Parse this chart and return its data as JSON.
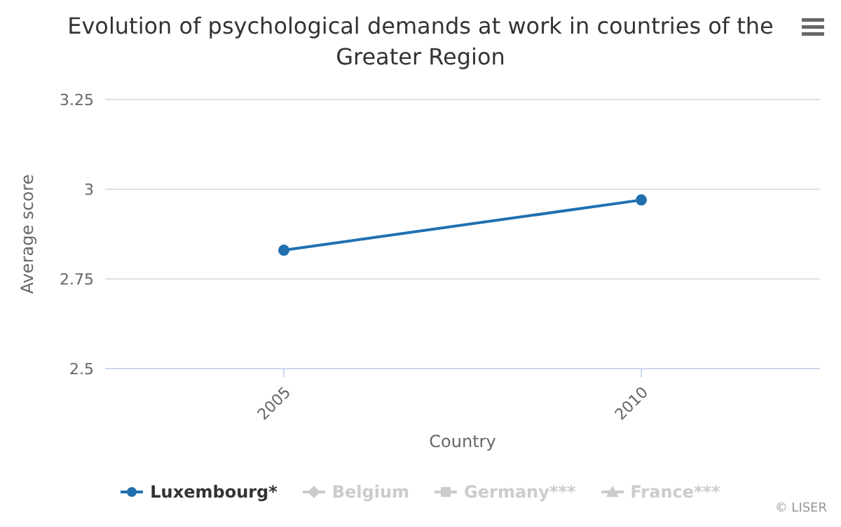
{
  "chart_data": {
    "type": "line",
    "title": "Evolution of psychological demands at work in countries of the Greater Region",
    "xlabel": "Country",
    "ylabel": "Average score",
    "categories": [
      "2005",
      "2010"
    ],
    "series": [
      {
        "name": "Luxembourg*",
        "color": "#2070b0",
        "values": [
          2.83,
          2.97
        ],
        "marker": "circle"
      },
      {
        "name": "Belgium",
        "color": "#cccccc",
        "values": [
          null,
          null
        ],
        "marker": "diamond"
      },
      {
        "name": "Germany***",
        "color": "#cccccc",
        "values": [
          null,
          null
        ],
        "marker": "square"
      },
      {
        "name": "France***",
        "color": "#cccccc",
        "values": [
          null,
          null
        ],
        "marker": "triangle"
      }
    ],
    "ylim": [
      2.5,
      3.25
    ],
    "yticks": [
      2.5,
      2.75,
      3,
      3.25
    ],
    "grid": "y",
    "legend": "bottom",
    "annotations": [
      "© LISER"
    ]
  }
}
